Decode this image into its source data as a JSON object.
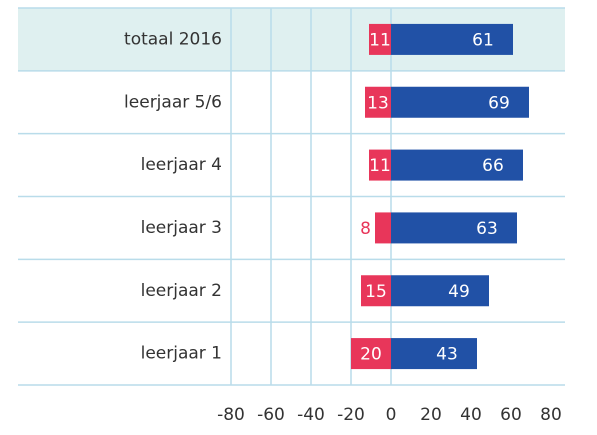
{
  "chart_data": {
    "type": "diverging-bar",
    "categories": [
      "totaal 2016",
      "leerjaar 5/6",
      "leerjaar 4",
      "leerjaar 3",
      "leerjaar 2",
      "leerjaar 1"
    ],
    "series": [
      {
        "color": "#e8365a",
        "direction": "left",
        "values": [
          11,
          13,
          11,
          8,
          15,
          20
        ]
      },
      {
        "color": "#2151a6",
        "direction": "right",
        "values": [
          61,
          69,
          66,
          63,
          49,
          43
        ]
      }
    ],
    "xlim": [
      -80,
      80
    ],
    "xticks": [
      -80,
      -60,
      -40,
      -20,
      0,
      20,
      40,
      60,
      80
    ],
    "grid": true
  }
}
